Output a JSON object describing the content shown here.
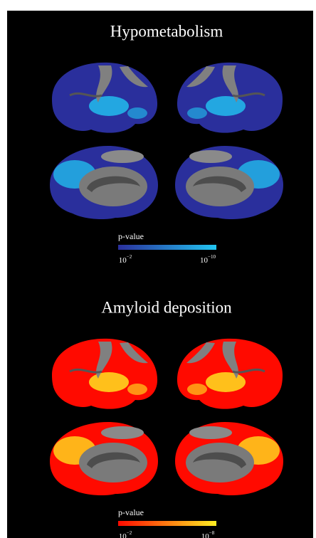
{
  "panels": [
    {
      "title": "Hypometabolism",
      "colorbar": {
        "label": "p-value",
        "colors": [
          "#2a2f9c",
          "#22c6f2"
        ],
        "min": {
          "base": "10",
          "exponent": "−2"
        },
        "max": {
          "base": "10",
          "exponent": "−10"
        }
      }
    },
    {
      "title": "Amyloid deposition",
      "colorbar": {
        "label": "p-value",
        "colors": [
          "#ff0a00",
          "#ffee22"
        ],
        "min": {
          "base": "10",
          "exponent": "−2"
        },
        "max": {
          "base": "10",
          "exponent": "−8"
        }
      }
    }
  ]
}
